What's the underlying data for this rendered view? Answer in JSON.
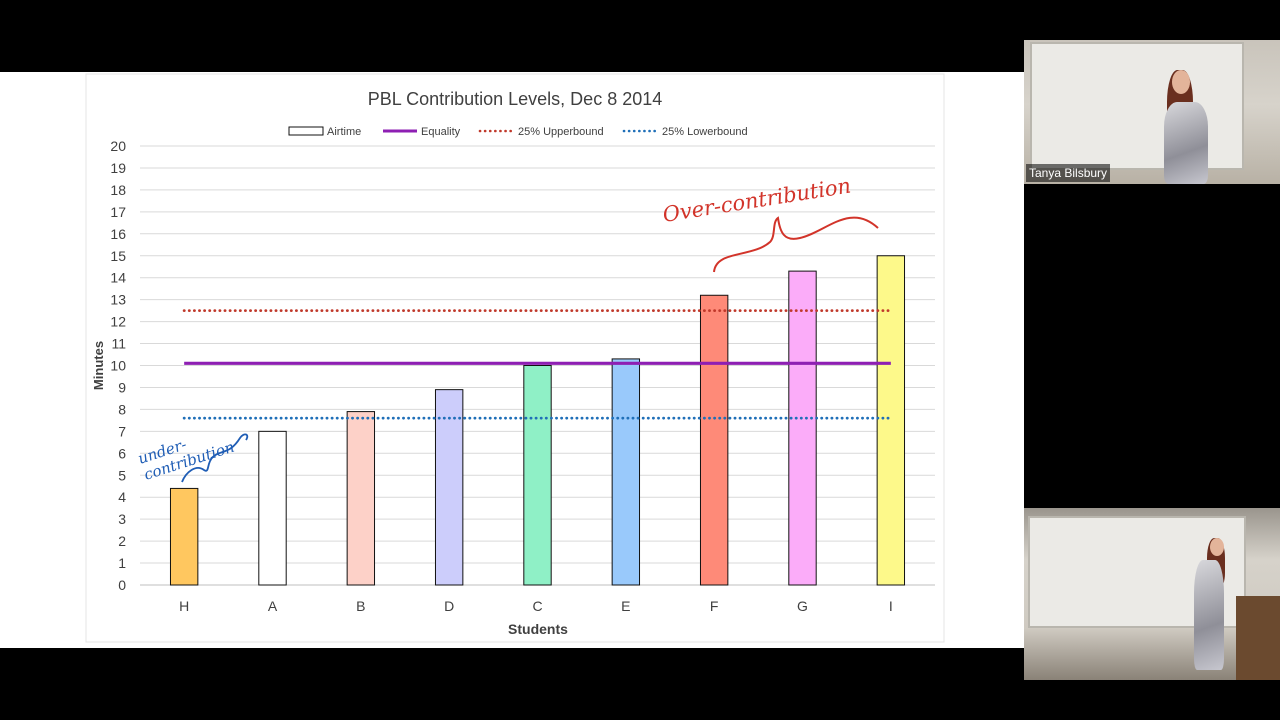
{
  "chart_data": {
    "type": "bar",
    "title": "PBL Contribution Levels, Dec 8 2014",
    "xlabel": "Students",
    "ylabel": "Minutes",
    "ylim": [
      0,
      20
    ],
    "yticks": [
      0,
      1,
      2,
      3,
      4,
      5,
      6,
      7,
      8,
      9,
      10,
      11,
      12,
      13,
      14,
      15,
      16,
      17,
      18,
      19,
      20
    ],
    "grid": true,
    "legend_position": "top",
    "categories": [
      "H",
      "A",
      "B",
      "D",
      "C",
      "E",
      "F",
      "G",
      "I"
    ],
    "series": [
      {
        "name": "Airtime",
        "values": [
          4.4,
          7.0,
          7.9,
          8.9,
          10.0,
          10.3,
          13.2,
          14.3,
          15.0
        ],
        "colors": [
          "#ffc75f",
          "#ffffff",
          "#fdd1c8",
          "#cccdfb",
          "#8ff0c6",
          "#99c9fb",
          "#fe8a78",
          "#fbacf9",
          "#fdf98a"
        ]
      },
      {
        "name": "Equality",
        "value": 10.1,
        "color": "#8e1fb3",
        "style": "solid"
      },
      {
        "name": "25% Upperbound",
        "value": 12.5,
        "color": "#c0392b",
        "style": "dotted"
      },
      {
        "name": "25% Lowerbound",
        "value": 7.6,
        "color": "#1f6fb8",
        "style": "dotted"
      }
    ],
    "annotations": [
      {
        "text": "Over-contribution",
        "color": "#d2342a"
      },
      {
        "text": "under-contribution",
        "color": "#1f5db5"
      }
    ]
  },
  "participants": {
    "speaker_name": "Tanya Bilsbury"
  }
}
